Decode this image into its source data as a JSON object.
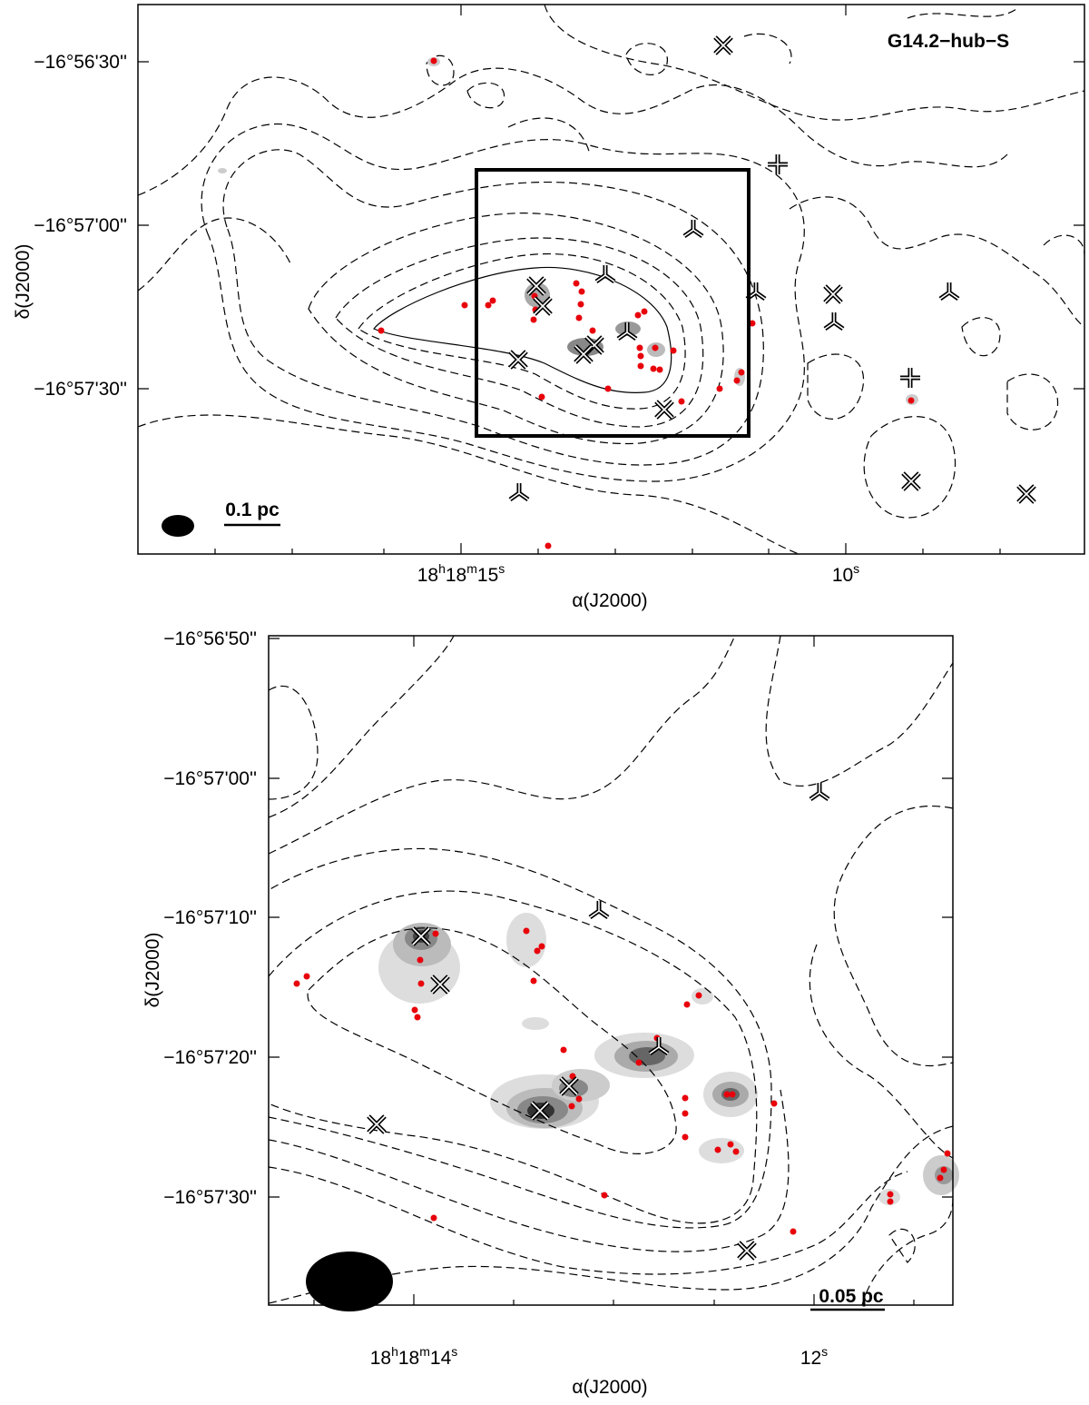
{
  "panels": [
    {
      "title": "G14.2−hub−S",
      "dec_ticks": [
        "−16°56'30''",
        "−16°57'00''",
        "−16°57'30''"
      ],
      "ra_ticks": [
        [
          "18",
          "h",
          "18",
          "m",
          "15",
          "s"
        ],
        [
          "10",
          "s"
        ]
      ],
      "x_label": "α(J2000)",
      "y_label": "δ(J2000)",
      "scale_bar": "0.1 pc"
    },
    {
      "dec_ticks": [
        "−16°56'50''",
        "−16°57'00''",
        "−16°57'10''",
        "−16°57'20''",
        "−16°57'30''"
      ],
      "ra_ticks": [
        [
          "18",
          "h",
          "18",
          "m",
          "14",
          "s"
        ],
        [
          "12",
          "s"
        ]
      ],
      "x_label": "α(J2000)",
      "y_label": "δ(J2000)",
      "scale_bar": "0.05 pc"
    }
  ]
}
